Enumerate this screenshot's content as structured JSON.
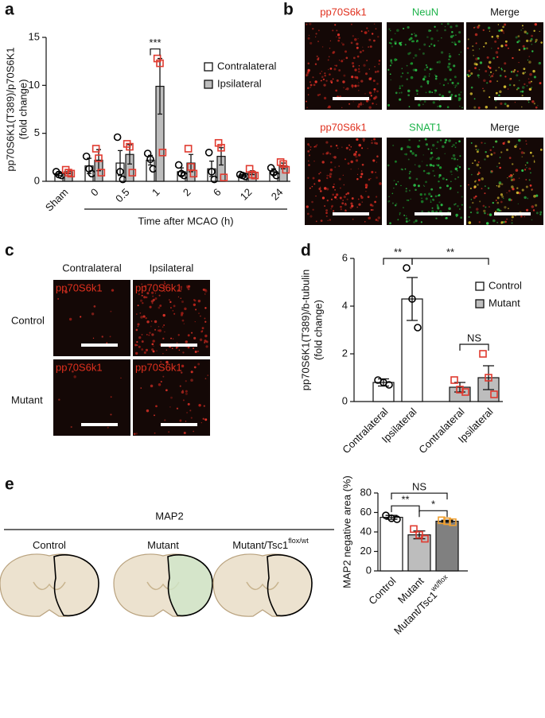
{
  "panel_labels": [
    "a",
    "b",
    "c",
    "d",
    "e"
  ],
  "panel_b": {
    "rows": [
      [
        "pp70S6k1",
        "NeuN",
        "Merge"
      ],
      [
        "pp70S6k1",
        "SNAT1",
        "Merge"
      ]
    ]
  },
  "panel_c": {
    "columns": [
      "Contralateral",
      "Ipsilateral"
    ],
    "rows": [
      "Control",
      "Mutant"
    ],
    "image_label": "pp70S6k1"
  },
  "panel_e_images": {
    "title": "MAP2",
    "labels": [
      {
        "text": "Control"
      },
      {
        "text": "Mutant"
      },
      {
        "text": "Mutant/Tsc1",
        "sup": "flox/wt"
      }
    ]
  },
  "chart_data": [
    {
      "type": "bar",
      "categories": [
        "Sham",
        "0",
        "0.5",
        "1",
        "2",
        "6",
        "12",
        "24"
      ],
      "xlabel": "Time after MCAO (h)",
      "ylabel": [
        "pp70S6K1(T389)/p70S6K1",
        "(fold change)"
      ],
      "ylim": [
        0,
        15
      ],
      "yticks": [
        0,
        5,
        10,
        15
      ],
      "series": [
        {
          "name": "Contralateral",
          "color": "#ffffff",
          "point_color": "#000000",
          "marker": "circle",
          "values": [
            0.8,
            1.6,
            1.9,
            2.2,
            1.0,
            1.3,
            0.6,
            1.0
          ],
          "errors": [
            0.2,
            0.8,
            1.3,
            0.5,
            0.4,
            0.8,
            0.1,
            0.3
          ],
          "points": [
            [
              1.0,
              0.7,
              0.6
            ],
            [
              2.6,
              1.3,
              0.8
            ],
            [
              4.6,
              1.0,
              0.2
            ],
            [
              2.9,
              2.3,
              1.3
            ],
            [
              1.7,
              0.8,
              0.6
            ],
            [
              3.0,
              1.0,
              0.2
            ],
            [
              0.7,
              0.6,
              0.5
            ],
            [
              1.4,
              0.9,
              0.6
            ]
          ]
        },
        {
          "name": "Ipsilateral",
          "color": "#bdbdbd",
          "point_color": "#e03a2f",
          "marker": "square",
          "values": [
            1.0,
            2.2,
            2.8,
            9.9,
            1.9,
            2.6,
            0.9,
            1.6
          ],
          "errors": [
            0.2,
            1.1,
            1.0,
            2.9,
            0.9,
            0.9,
            0.2,
            0.3
          ],
          "points": [
            [
              1.2,
              0.9,
              0.8
            ],
            [
              3.4,
              2.4,
              0.9
            ],
            [
              3.9,
              3.6,
              0.9
            ],
            [
              12.8,
              12.3,
              3.0
            ],
            [
              3.4,
              1.5,
              0.8
            ],
            [
              4.0,
              3.5,
              0.4
            ],
            [
              1.3,
              0.7,
              0.6
            ],
            [
              2.0,
              1.8,
              1.2
            ]
          ]
        }
      ],
      "annotations": [
        {
          "text": "***",
          "bars": [
            6,
            7
          ]
        }
      ],
      "legend": "upper right"
    },
    {
      "type": "bar",
      "categories": [
        "Contralateral",
        "Ipsilateral",
        "Contralateral",
        "Ipsilateral"
      ],
      "ylabel": [
        "pp70S6K1(T389)/b-tubulin",
        "(fold change)"
      ],
      "ylim": [
        0,
        6
      ],
      "yticks": [
        0,
        2,
        4,
        6
      ],
      "series": [
        {
          "name": "Control",
          "color": "#ffffff",
          "point_color": "#000000",
          "marker": "circle",
          "values": [
            0.8,
            4.3,
            null,
            null
          ],
          "errors": [
            0.15,
            0.9,
            null,
            null
          ],
          "points": [
            [
              0.9,
              0.8,
              0.7
            ],
            [
              5.6,
              4.3,
              3.1
            ],
            null,
            null
          ]
        },
        {
          "name": "Mutant",
          "color": "#bdbdbd",
          "point_color": "#e03a2f",
          "marker": "square",
          "values": [
            null,
            null,
            0.6,
            1.0
          ],
          "errors": [
            null,
            null,
            0.2,
            0.5
          ],
          "points": [
            null,
            null,
            [
              0.9,
              0.5,
              0.4
            ],
            [
              2.0,
              1.0,
              0.3
            ]
          ]
        }
      ],
      "annotations": [
        {
          "text": "NS",
          "bars": [
            2,
            3
          ]
        },
        {
          "text": "**",
          "bars": [
            0,
            1
          ]
        },
        {
          "text": "**",
          "bars": [
            1,
            3
          ]
        }
      ],
      "legend": "right"
    },
    {
      "type": "bar",
      "categories": [
        "Control",
        "Mutant",
        {
          "text": "Mutant/Tsc1",
          "sup": "wt/flox"
        }
      ],
      "ylabel": [
        "MAP2 negative area (%)"
      ],
      "ylim": [
        0,
        80
      ],
      "yticks": [
        0,
        20,
        40,
        60,
        80
      ],
      "values": [
        55,
        37,
        51
      ],
      "errors": [
        2,
        4,
        1
      ],
      "colors": [
        "#ffffff",
        "#bdbdbd",
        "#808080"
      ],
      "point_colors": [
        "#000000",
        "#e03a2f",
        "#f0a030"
      ],
      "markers": [
        "circle",
        "square",
        "square"
      ],
      "points": [
        [
          57,
          54,
          53
        ],
        [
          43,
          37,
          33
        ],
        [
          52,
          51,
          50
        ]
      ],
      "annotations": [
        {
          "text": "**",
          "bars": [
            0,
            1
          ]
        },
        {
          "text": "*",
          "bars": [
            1,
            2
          ]
        },
        {
          "text": "NS",
          "bars": [
            0,
            2
          ]
        }
      ]
    }
  ]
}
